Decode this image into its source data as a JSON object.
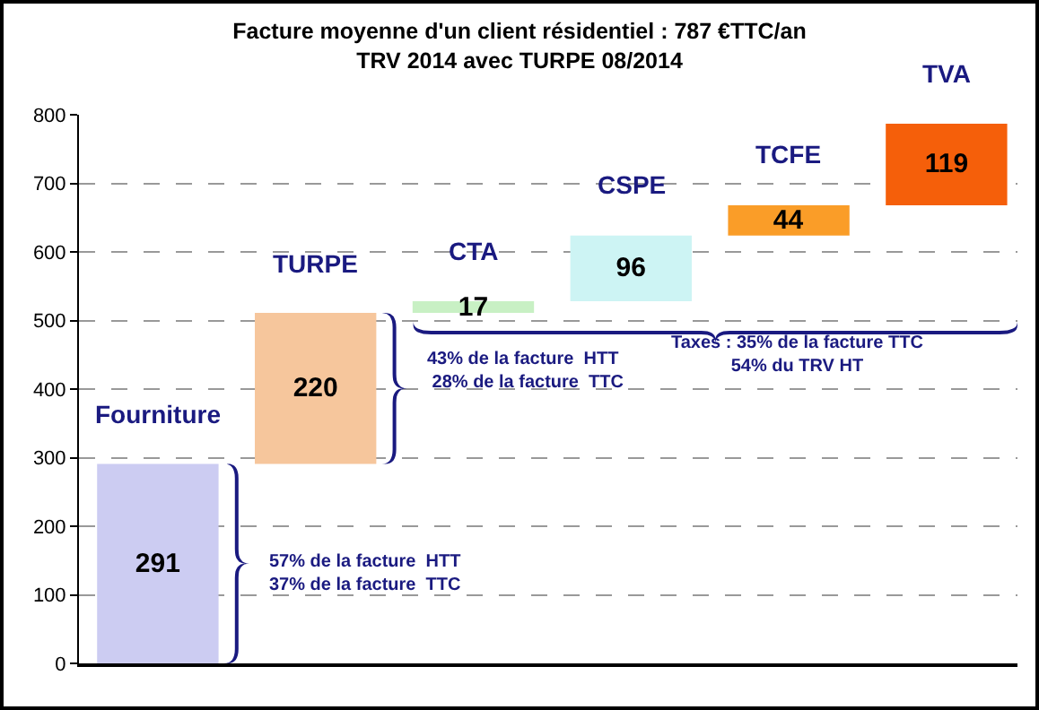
{
  "chart_data": {
    "type": "bar",
    "title": "Facture moyenne d'un client résidentiel : 787 €TTC/an\nTRV 2014 avec TURPE 08/2014",
    "categories": [
      "Fourniture",
      "TURPE",
      "CTA",
      "CSPE",
      "TCFE",
      "TVA"
    ],
    "values": [
      291,
      220,
      17,
      96,
      44,
      119
    ],
    "base": [
      0,
      291,
      511,
      528,
      624,
      668
    ],
    "colors": [
      "#ccccf2",
      "#f6c69c",
      "#c8f0c4",
      "#cdf4f4",
      "#fa9d28",
      "#f55f0a"
    ],
    "data_labels": true,
    "ylim": [
      0,
      800
    ],
    "yticks": [
      0,
      100,
      200,
      300,
      400,
      500,
      600,
      700,
      800
    ],
    "grid": "y",
    "tick_labels": "y",
    "annotations": [
      "57% de la facture  HTT\n37% de la facture  TTC",
      "43% de la facture  HTT\n 28% de la facture  TTC",
      "Taxes : 35% de la facture TTC\n54% du TRV HT"
    ]
  }
}
